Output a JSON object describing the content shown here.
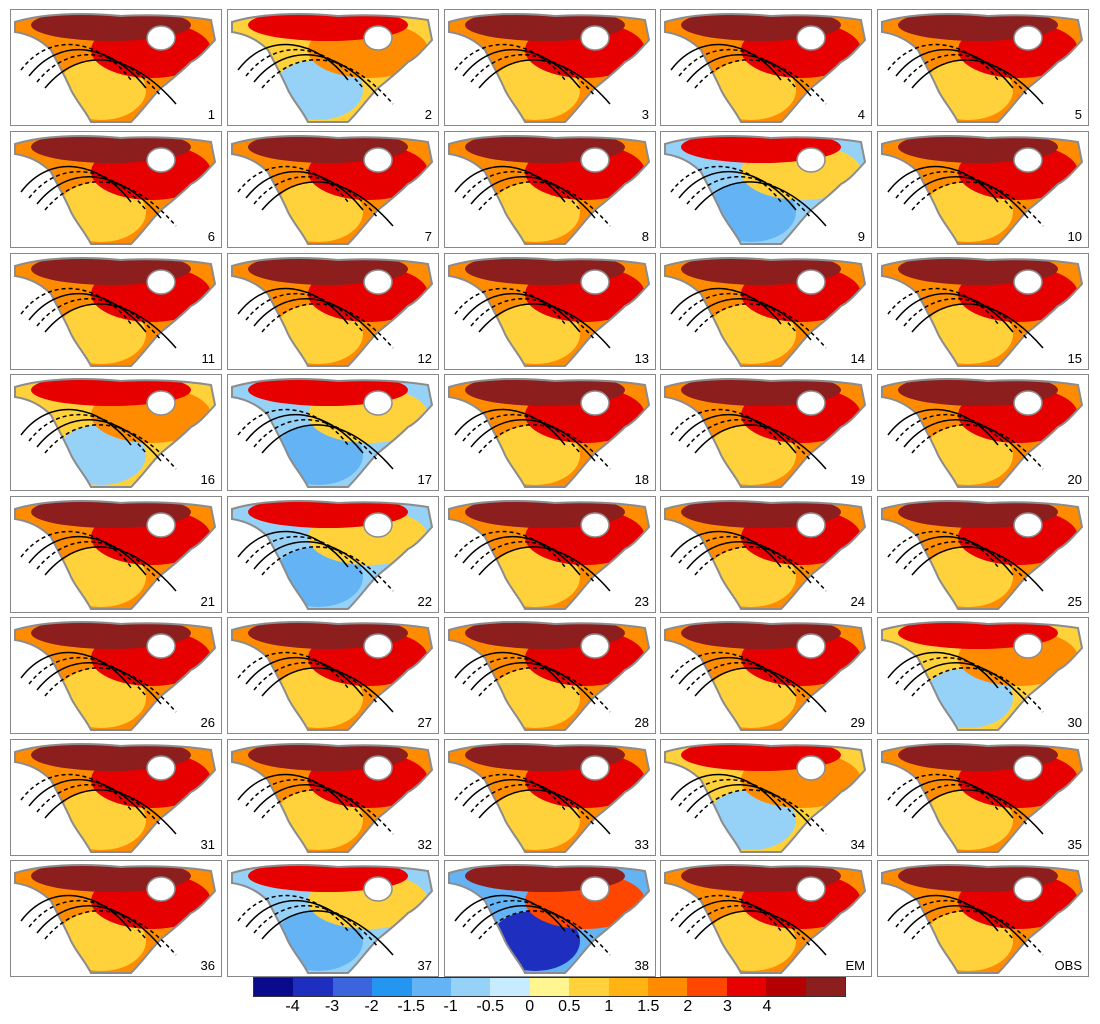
{
  "panels": [
    {
      "label": "1",
      "anom": "warm"
    },
    {
      "label": "2",
      "anom": "mixed"
    },
    {
      "label": "3",
      "anom": "warm"
    },
    {
      "label": "4",
      "anom": "warm"
    },
    {
      "label": "5",
      "anom": "warm"
    },
    {
      "label": "6",
      "anom": "warm"
    },
    {
      "label": "7",
      "anom": "warm"
    },
    {
      "label": "8",
      "anom": "warm"
    },
    {
      "label": "9",
      "anom": "cool"
    },
    {
      "label": "10",
      "anom": "warm"
    },
    {
      "label": "11",
      "anom": "warm"
    },
    {
      "label": "12",
      "anom": "warm"
    },
    {
      "label": "13",
      "anom": "warm"
    },
    {
      "label": "14",
      "anom": "warm"
    },
    {
      "label": "15",
      "anom": "warm"
    },
    {
      "label": "16",
      "anom": "mixed"
    },
    {
      "label": "17",
      "anom": "cool"
    },
    {
      "label": "18",
      "anom": "warm"
    },
    {
      "label": "19",
      "anom": "warm"
    },
    {
      "label": "20",
      "anom": "warm"
    },
    {
      "label": "21",
      "anom": "warm"
    },
    {
      "label": "22",
      "anom": "cool"
    },
    {
      "label": "23",
      "anom": "warm"
    },
    {
      "label": "24",
      "anom": "warm"
    },
    {
      "label": "25",
      "anom": "warm"
    },
    {
      "label": "26",
      "anom": "warm"
    },
    {
      "label": "27",
      "anom": "warm"
    },
    {
      "label": "28",
      "anom": "warm"
    },
    {
      "label": "29",
      "anom": "warm"
    },
    {
      "label": "30",
      "anom": "mixed"
    },
    {
      "label": "31",
      "anom": "warm"
    },
    {
      "label": "32",
      "anom": "warm"
    },
    {
      "label": "33",
      "anom": "warm"
    },
    {
      "label": "34",
      "anom": "mixed"
    },
    {
      "label": "35",
      "anom": "warm"
    },
    {
      "label": "36",
      "anom": "warm"
    },
    {
      "label": "37",
      "anom": "cool"
    },
    {
      "label": "38",
      "anom": "strong"
    },
    {
      "label": "EM",
      "anom": "warm"
    },
    {
      "label": "OBS",
      "anom": "warm"
    }
  ],
  "colorbar": {
    "colors": [
      "#0a0a8c",
      "#1e2fc0",
      "#3c64dc",
      "#2596f0",
      "#64b4f5",
      "#96d2f8",
      "#c8ecff",
      "#fff591",
      "#ffd23c",
      "#ffb414",
      "#ff8c00",
      "#ff4600",
      "#e60000",
      "#b40000",
      "#8c1e1e"
    ],
    "tick_labels": [
      "-4",
      "-3",
      "-2",
      "-1.5",
      "-1",
      "-0.5",
      "0",
      "0.5",
      "1",
      "1.5",
      "2",
      "3",
      "4"
    ]
  }
}
